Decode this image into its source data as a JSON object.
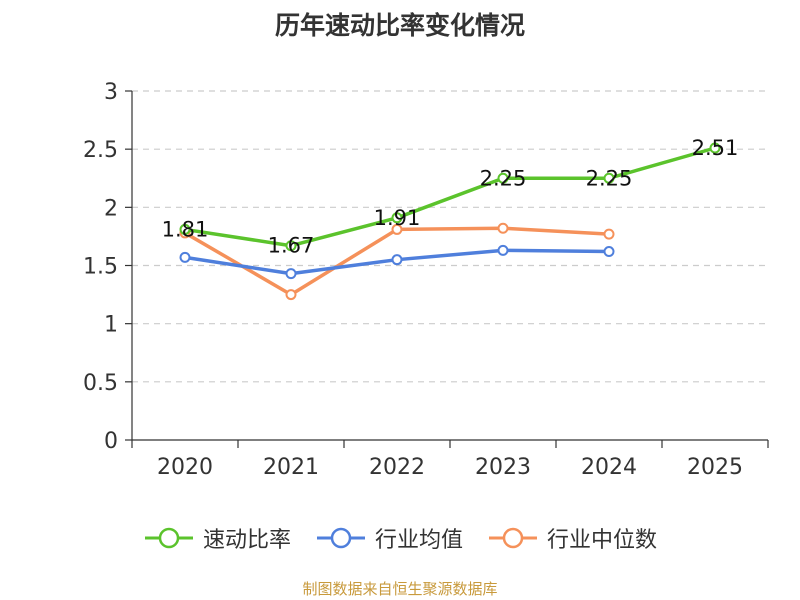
{
  "chart_data": {
    "type": "line",
    "title": "历年速动比率变化情况",
    "categories": [
      "2020",
      "2021",
      "2022",
      "2023",
      "2024",
      "2025"
    ],
    "yticks": [
      "0",
      "0.5",
      "1",
      "1.5",
      "2",
      "2.5",
      "3"
    ],
    "ylim": [
      0,
      3
    ],
    "grid": "dashed-horizontal",
    "legend_position": "bottom",
    "series": [
      {
        "name": "速动比率",
        "color": "#5bc32c",
        "values": [
          1.81,
          1.67,
          1.91,
          2.25,
          2.25,
          2.51
        ],
        "labels": [
          "1.81",
          "1.67",
          "1.91",
          "2.25",
          "2.25",
          "2.51"
        ]
      },
      {
        "name": "行业均值",
        "color": "#4f7fdc",
        "values": [
          1.57,
          1.43,
          1.55,
          1.63,
          1.62,
          null
        ]
      },
      {
        "name": "行业中位数",
        "color": "#f5915a",
        "values": [
          1.78,
          1.25,
          1.81,
          1.82,
          1.77,
          null
        ]
      }
    ]
  },
  "source": "制图数据来自恒生聚源数据库"
}
